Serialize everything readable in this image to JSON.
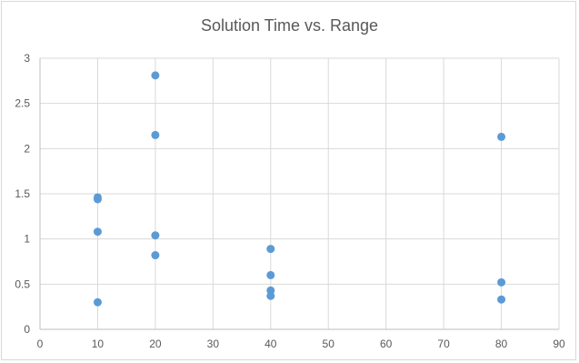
{
  "chart_data": {
    "type": "scatter",
    "title": "Solution Time vs. Range",
    "xlabel": "",
    "ylabel": "",
    "xlim": [
      0,
      90
    ],
    "ylim": [
      0,
      3
    ],
    "x_ticks": [
      0,
      10,
      20,
      30,
      40,
      50,
      60,
      70,
      80,
      90
    ],
    "y_ticks": [
      0,
      0.5,
      1,
      1.5,
      2,
      2.5,
      3
    ],
    "grid": true,
    "legend": "none",
    "marker_color": "#5b9bd5",
    "series": [
      {
        "points": [
          {
            "x": 10,
            "y": 1.46
          },
          {
            "x": 10,
            "y": 1.44
          },
          {
            "x": 10,
            "y": 1.08
          },
          {
            "x": 10,
            "y": 0.3
          },
          {
            "x": 20,
            "y": 2.81
          },
          {
            "x": 20,
            "y": 2.15
          },
          {
            "x": 20,
            "y": 1.04
          },
          {
            "x": 20,
            "y": 0.82
          },
          {
            "x": 40,
            "y": 0.89
          },
          {
            "x": 40,
            "y": 0.6
          },
          {
            "x": 40,
            "y": 0.43
          },
          {
            "x": 40,
            "y": 0.37
          },
          {
            "x": 80,
            "y": 2.13
          },
          {
            "x": 80,
            "y": 0.52
          },
          {
            "x": 80,
            "y": 0.33
          }
        ]
      }
    ]
  }
}
